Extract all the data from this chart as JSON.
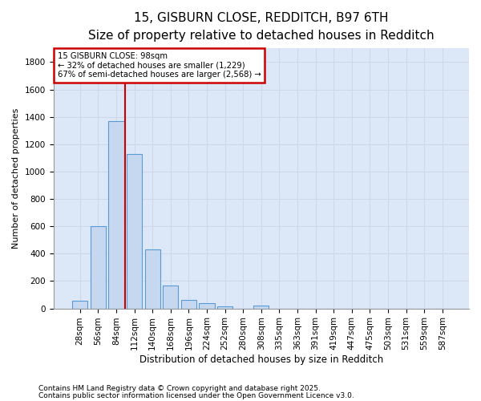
{
  "title1": "15, GISBURN CLOSE, REDDITCH, B97 6TH",
  "title2": "Size of property relative to detached houses in Redditch",
  "xlabel": "Distribution of detached houses by size in Redditch",
  "ylabel": "Number of detached properties",
  "categories": [
    "28sqm",
    "56sqm",
    "84sqm",
    "112sqm",
    "140sqm",
    "168sqm",
    "196sqm",
    "224sqm",
    "252sqm",
    "280sqm",
    "308sqm",
    "335sqm",
    "363sqm",
    "391sqm",
    "419sqm",
    "447sqm",
    "475sqm",
    "503sqm",
    "531sqm",
    "559sqm",
    "587sqm"
  ],
  "values": [
    55,
    600,
    1370,
    1130,
    430,
    170,
    65,
    40,
    15,
    0,
    20,
    0,
    0,
    0,
    0,
    0,
    0,
    0,
    0,
    0,
    0
  ],
  "bar_color": "#c5d8f0",
  "bar_edge_color": "#5b9bd5",
  "grid_color": "#d0d8e8",
  "bg_color": "#ffffff",
  "plot_bg_color": "#dce8f7",
  "vline_color": "#cc0000",
  "vline_x_index": 2.5,
  "annotation_text": "15 GISBURN CLOSE: 98sqm\n← 32% of detached houses are smaller (1,229)\n67% of semi-detached houses are larger (2,568) →",
  "annotation_box_color": "#cc0000",
  "annotation_box_face": "#ffffff",
  "ylim": [
    0,
    1900
  ],
  "yticks": [
    0,
    200,
    400,
    600,
    800,
    1000,
    1200,
    1400,
    1600,
    1800
  ],
  "footnote1": "Contains HM Land Registry data © Crown copyright and database right 2025.",
  "footnote2": "Contains public sector information licensed under the Open Government Licence v3.0.",
  "title_fontsize": 11,
  "subtitle_fontsize": 9,
  "tick_fontsize": 7.5,
  "ylabel_fontsize": 8,
  "xlabel_fontsize": 8.5,
  "footnote_fontsize": 6.5
}
